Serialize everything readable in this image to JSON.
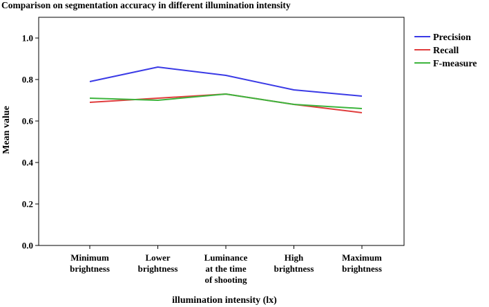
{
  "chart_data": {
    "type": "line",
    "title": "Comparison on segmentation accuracy in different illumination intensity",
    "xlabel": "illumination intensity (lx)",
    "ylabel": "Mean value",
    "categories": [
      [
        "Minimum",
        "brightness"
      ],
      [
        "Lower",
        "brightness"
      ],
      [
        "Luminance",
        "at the time",
        "of shooting"
      ],
      [
        "High",
        "brightness"
      ],
      [
        "Maximum",
        "brightness"
      ]
    ],
    "ylim": [
      0,
      1.1
    ],
    "yticks": [
      "0.0",
      "0.2",
      "0.4",
      "0.6",
      "0.8",
      "1.0"
    ],
    "grid": false,
    "legend_position": "top-right",
    "series": [
      {
        "name": "Precision",
        "color": "#3a3ae6",
        "values": [
          0.79,
          0.86,
          0.82,
          0.75,
          0.72
        ]
      },
      {
        "name": "Recall",
        "color": "#e03c3c",
        "values": [
          0.69,
          0.71,
          0.73,
          0.68,
          0.64
        ]
      },
      {
        "name": "F-measure",
        "color": "#3cb43c",
        "values": [
          0.71,
          0.7,
          0.73,
          0.68,
          0.66
        ]
      }
    ]
  }
}
